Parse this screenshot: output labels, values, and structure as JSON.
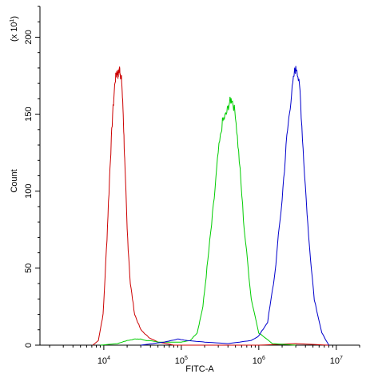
{
  "chart_data": {
    "type": "line",
    "title": "",
    "xlabel": "FITC-A",
    "ylabel": "Count",
    "y_multiplier_label": "(x 10",
    "y_multiplier_exp": "1",
    "y_multiplier_close": ")",
    "xscale": "log",
    "xlim": [
      1500,
      20000000
    ],
    "ylim": [
      0,
      220
    ],
    "grid": false,
    "legend": "none",
    "x_ticks": [
      {
        "base": "10",
        "exp": "4",
        "value": 10000
      },
      {
        "base": "10",
        "exp": "5",
        "value": 100000
      },
      {
        "base": "10",
        "exp": "6",
        "value": 1000000
      },
      {
        "base": "10",
        "exp": "7",
        "value": 10000000
      }
    ],
    "y_ticks": [
      {
        "label": "0",
        "value": 0
      },
      {
        "label": "50",
        "value": 50
      },
      {
        "label": "100",
        "value": 100
      },
      {
        "label": "150",
        "value": 150
      },
      {
        "label": "200",
        "value": 200
      }
    ],
    "series": [
      {
        "color": "#cc0000",
        "x": [
          7200,
          8500,
          9800,
          11000,
          12000,
          13000,
          14000,
          14800,
          15300,
          15900,
          16400,
          17000,
          17800,
          18600,
          20000,
          22000,
          25000,
          30000,
          38000,
          50000,
          65000,
          80000,
          1000000,
          3000000,
          8000000
        ],
        "y": [
          0,
          3,
          20,
          70,
          115,
          150,
          172,
          178,
          175,
          180,
          176,
          172,
          150,
          120,
          75,
          40,
          20,
          10,
          5,
          2,
          1,
          0,
          0,
          1,
          0
        ]
      },
      {
        "color": "#00cc00",
        "x": [
          9000,
          15000,
          20000,
          25000,
          30000,
          35000,
          40000,
          50000,
          70000,
          100000,
          130000,
          160000,
          190000,
          220000,
          260000,
          300000,
          340000,
          380000,
          420000,
          450000,
          500000,
          560000,
          650000,
          800000,
          1000000,
          1500000,
          3000000
        ],
        "y": [
          0,
          1,
          3,
          4,
          4,
          3,
          3,
          2,
          2,
          2,
          3,
          8,
          25,
          55,
          90,
          125,
          145,
          150,
          158,
          160,
          150,
          120,
          75,
          30,
          8,
          1,
          0
        ]
      },
      {
        "color": "#0000cc",
        "x": [
          30000,
          60000,
          90000,
          120000,
          200000,
          400000,
          800000,
          1000000,
          1300000,
          1600000,
          2000000,
          2300000,
          2600000,
          2900000,
          3100000,
          3400000,
          3800000,
          4400000,
          5200000,
          6500000,
          8000000
        ],
        "y": [
          0,
          2,
          4,
          3,
          2,
          1,
          3,
          6,
          15,
          45,
          95,
          135,
          160,
          178,
          180,
          165,
          120,
          70,
          30,
          8,
          0
        ]
      }
    ]
  }
}
